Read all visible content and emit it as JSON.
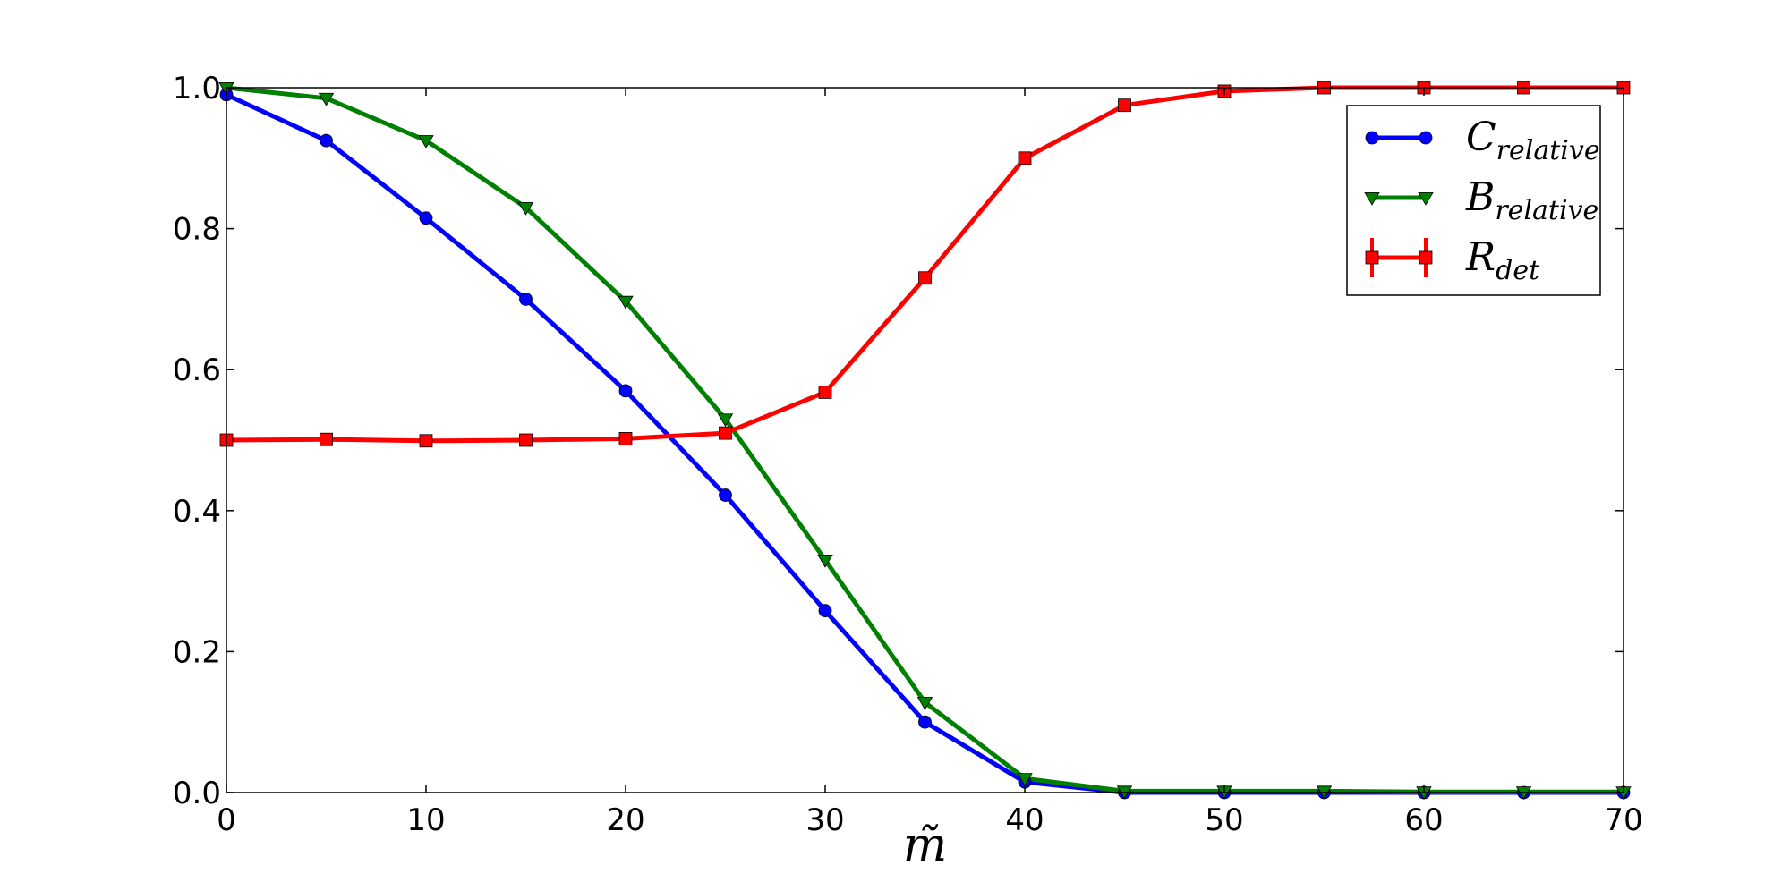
{
  "chart_data": {
    "type": "line",
    "title": "",
    "xlabel": "m̃",
    "ylabel": "",
    "xlim": [
      0,
      70
    ],
    "ylim": [
      0,
      1.0
    ],
    "x_ticks": [
      "0",
      "10",
      "20",
      "30",
      "40",
      "50",
      "60",
      "70"
    ],
    "y_ticks": [
      "0.0",
      "0.2",
      "0.4",
      "0.6",
      "0.8",
      "1.0"
    ],
    "grid": false,
    "legend_position": "top-right",
    "x": [
      0,
      5,
      10,
      15,
      20,
      25,
      30,
      35,
      40,
      45,
      50,
      55,
      60,
      65,
      70
    ],
    "series": [
      {
        "name": "C_relative",
        "name_main": "C",
        "name_sub": "relative",
        "color": "#0000ff",
        "marker": "circle",
        "values": [
          0.99,
          0.925,
          0.815,
          0.7,
          0.57,
          0.422,
          0.258,
          0.1,
          0.015,
          0.0,
          0.0,
          0.0,
          0.0,
          0.0,
          0.0
        ]
      },
      {
        "name": "B_relative",
        "name_main": "B",
        "name_sub": "relative",
        "color": "#008000",
        "marker": "triangle-down",
        "values": [
          1.0,
          0.985,
          0.925,
          0.83,
          0.697,
          0.53,
          0.33,
          0.128,
          0.02,
          0.002,
          0.002,
          0.002,
          0.001,
          0.001,
          0.001
        ]
      },
      {
        "name": "R_det",
        "name_main": "R",
        "name_sub": "det",
        "color": "#ff0000",
        "marker": "square",
        "errorbars": true,
        "values": [
          0.5,
          0.501,
          0.499,
          0.5,
          0.502,
          0.51,
          0.568,
          0.73,
          0.9,
          0.975,
          0.995,
          1.0,
          1.0,
          1.0,
          1.0
        ]
      }
    ]
  }
}
